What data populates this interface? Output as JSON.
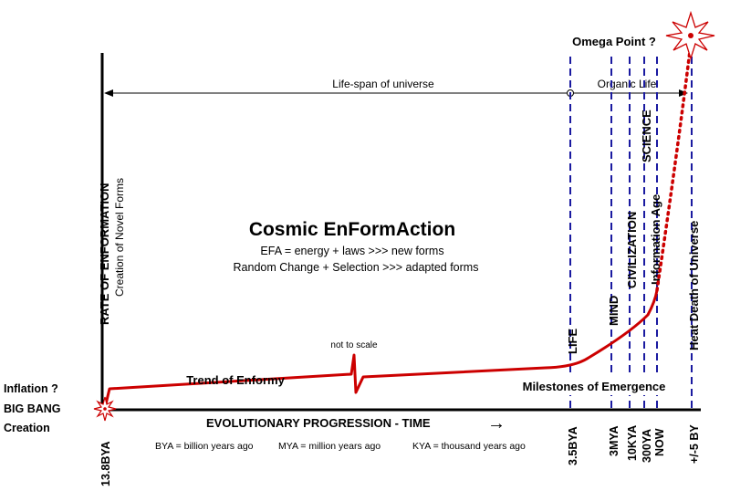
{
  "heading": {
    "title": "Cosmic EnFormAction",
    "line1": "EFA = energy + laws  >>> new forms",
    "line2": "Random Change + Selection >>> adapted forms"
  },
  "axes": {
    "y_label": "RATE OF ENFORMATION",
    "y_sublabel": "Creation of Novel Forms",
    "x_label": "EVOLUTIONARY PROGRESSION - TIME",
    "x_arrow": "→"
  },
  "spans": {
    "lifespan": "Life-span of universe",
    "organic": "Organic Life"
  },
  "start": {
    "inflation": "Inflation ?",
    "big_bang": "BIG BANG",
    "creation": "Creation",
    "tick": "13.8BYA"
  },
  "curve": {
    "not_to_scale": "not to scale",
    "trend": "Trend of Enformy",
    "milestones": "Milestones of Emergence"
  },
  "omega": "Omega Point ?",
  "milestones": [
    {
      "name": "LIFE",
      "tick": "3.5BYA"
    },
    {
      "name": "MIND",
      "tick": "3MYA"
    },
    {
      "name": "CIVILIZATION",
      "tick": "10KYA"
    },
    {
      "name": "SCIENCE",
      "tick": "300YA"
    },
    {
      "name": "Information Age",
      "tick": "NOW"
    },
    {
      "name": "Heat Death of Universe",
      "tick": "+/-5 BY"
    }
  ],
  "footnotes": {
    "bya": "BYA = billion years ago",
    "mya": "MYA = million years ago",
    "kya": "KYA = thousand years ago"
  },
  "colors": {
    "curve": "#cc0000",
    "milestone_lines": "#1a1aa0",
    "axis": "#000000"
  }
}
